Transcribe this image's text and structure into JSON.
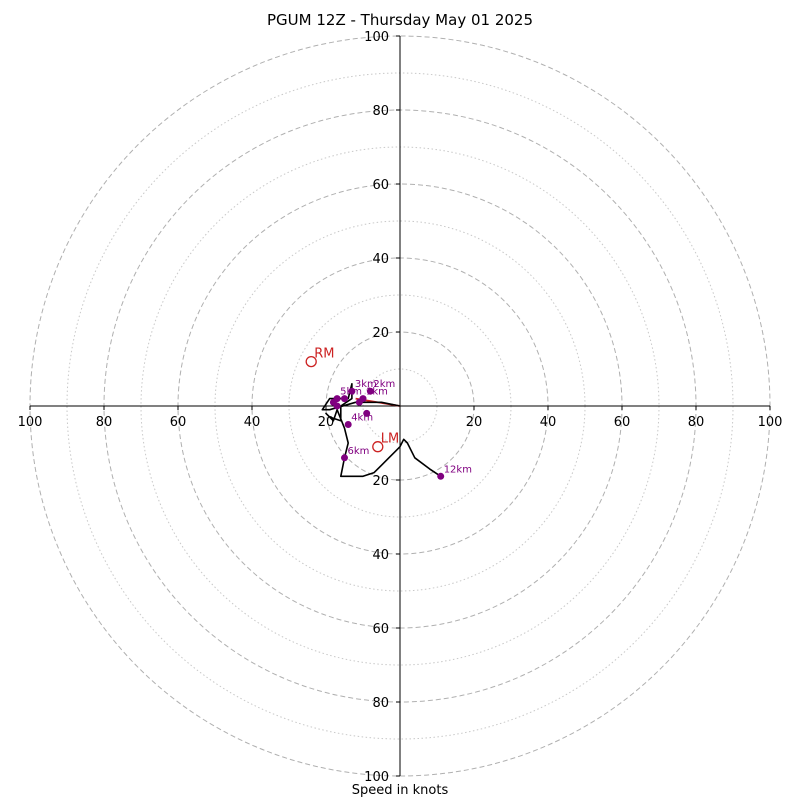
{
  "chart_data": {
    "type": "hodograph",
    "title": "PGUM 12Z - Thursday May 01 2025",
    "xlabel": "Speed in knots",
    "range": [
      -100,
      100
    ],
    "major_rings": [
      20,
      40,
      60,
      80,
      100
    ],
    "minor_rings": [
      10,
      30,
      50,
      70,
      90
    ],
    "x_ticks": [
      "100",
      "80",
      "60",
      "40",
      "20",
      "20",
      "40",
      "60",
      "80",
      "100"
    ],
    "x_tick_values": [
      -100,
      -80,
      -60,
      -40,
      -20,
      20,
      40,
      60,
      80,
      100
    ],
    "y_ticks": [
      "100",
      "80",
      "60",
      "40",
      "20",
      "20",
      "40",
      "60",
      "80",
      "100"
    ],
    "y_tick_values": [
      100,
      80,
      60,
      40,
      20,
      -20,
      -40,
      -60,
      -80,
      -100
    ],
    "hodograph_line": [
      [
        0,
        0
      ],
      [
        -5,
        1
      ],
      [
        -12,
        1
      ],
      [
        -19,
        -1
      ],
      [
        -21,
        -1
      ],
      [
        -19,
        2
      ],
      [
        -14,
        2
      ],
      [
        -13,
        6
      ],
      [
        -13,
        2
      ],
      [
        -16,
        0
      ],
      [
        -16,
        -4
      ],
      [
        -19,
        -3
      ],
      [
        -20,
        -2
      ],
      [
        -18,
        -4
      ],
      [
        -17,
        -1
      ],
      [
        -15,
        -6
      ],
      [
        -14,
        -10
      ],
      [
        -15,
        -14
      ],
      [
        -16,
        -19
      ],
      [
        -10,
        -19
      ],
      [
        -7,
        -18
      ],
      [
        -3,
        -14
      ],
      [
        -1,
        -12
      ],
      [
        0,
        -11
      ],
      [
        1,
        -9
      ],
      [
        2,
        -10
      ],
      [
        4,
        -14
      ],
      [
        8,
        -17
      ],
      [
        11,
        -19
      ]
    ],
    "shear_vector": [
      [
        -12,
        2
      ],
      [
        0,
        0
      ]
    ],
    "height_markers": [
      {
        "label": "",
        "u": -9,
        "v": -2
      },
      {
        "label": "",
        "u": -11,
        "v": 1
      },
      {
        "label": "1km",
        "u": -10,
        "v": 2
      },
      {
        "label": "2km",
        "u": -8,
        "v": 4
      },
      {
        "label": "3km",
        "u": -13,
        "v": 4
      },
      {
        "label": "",
        "u": -15,
        "v": 2
      },
      {
        "label": "5km",
        "u": -17,
        "v": 2
      },
      {
        "label": "",
        "u": -17,
        "v": 0
      },
      {
        "label": "",
        "u": -18,
        "v": 1
      },
      {
        "label": "4km",
        "u": -14,
        "v": -5
      },
      {
        "label": "6km",
        "u": -15,
        "v": -14
      },
      {
        "label": "12km",
        "u": 11,
        "v": -19
      }
    ],
    "storm_motion": [
      {
        "label": "RM",
        "u": -24,
        "v": 12
      },
      {
        "label": "LM",
        "u": -6,
        "v": -11
      }
    ],
    "colors": {
      "ring": "#b0b0b0",
      "axis": "#000000",
      "hodograph": "#000000",
      "marker": "#800080",
      "storm_motion": "#cc2222",
      "shear": "#cc2222"
    }
  }
}
